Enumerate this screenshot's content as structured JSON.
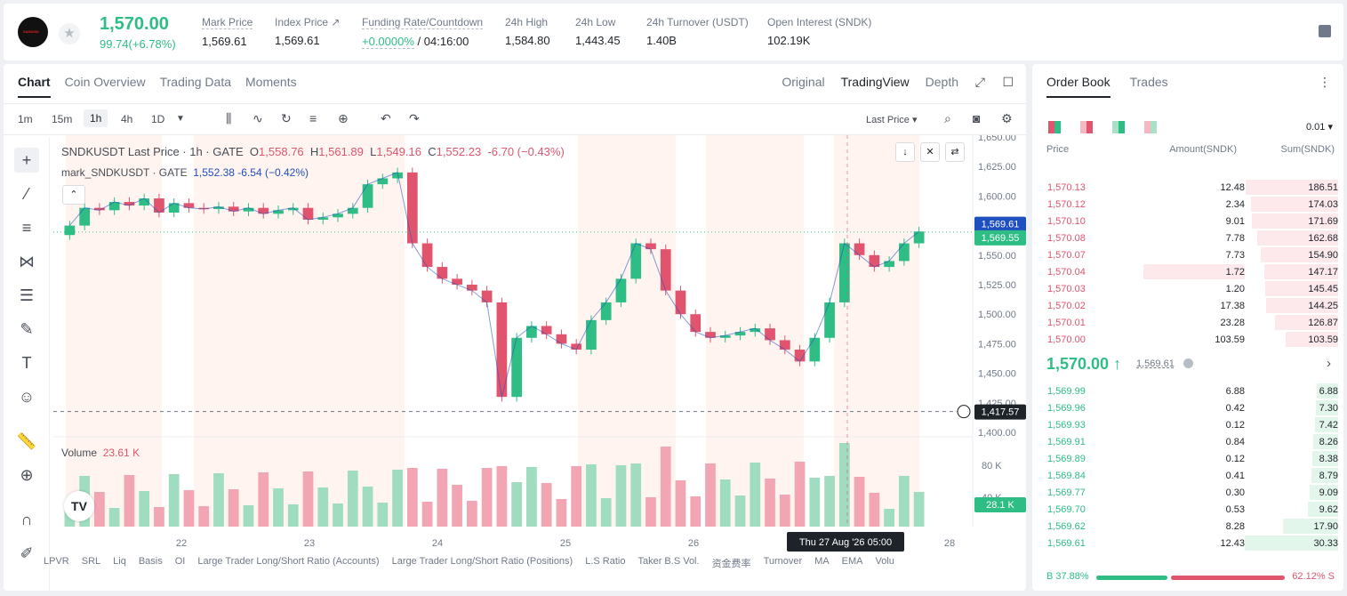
{
  "ticker": {
    "last_price": "1,570.00",
    "change": "99.74(+6.78%)",
    "stats": [
      {
        "label": "Mark Price",
        "value": "1,569.61"
      },
      {
        "label": "Index Price ↗",
        "value": "1,569.61"
      },
      {
        "label": "Funding Rate/Countdown",
        "value_rate": "+0.0000%",
        "value_countdown": "/ 04:16:00"
      },
      {
        "label": "24h High",
        "value": "1,584.80"
      },
      {
        "label": "24h Low",
        "value": "1,443.45"
      },
      {
        "label": "24h Turnover (USDT)",
        "value": "1.40B"
      },
      {
        "label": "Open Interest (SNDK)",
        "value": "102.19K"
      }
    ]
  },
  "chart_tabs": [
    "Chart",
    "Coin Overview",
    "Trading Data",
    "Moments"
  ],
  "view_tabs": [
    "Original",
    "TradingView",
    "Depth"
  ],
  "timeframes": [
    "1m",
    "15m",
    "1h",
    "4h",
    "1D"
  ],
  "price_type": "Last Price ▾",
  "legend": {
    "symbol": "SNDKUSDT Last Price · 1h · GATE",
    "o": "O",
    "o_val": "1,558.76",
    "h": "H",
    "h_val": "1,561.89",
    "l": "L",
    "l_val": "1,549.16",
    "c": "C",
    "c_val": "1,552.23",
    "chg": "-6.70 (−0.43%)",
    "mark": "mark_SNDKUSDT · GATE",
    "mark_vals": "1,552.38  -6.54  (−0.42%)"
  },
  "volume_legend": {
    "label": "Volume",
    "value": "23.61 K"
  },
  "price_tags": {
    "top": "1,569.61",
    "last": "1,569.55",
    "cross": "1,417.57",
    "vol": "28.1 K"
  },
  "crosshair_time": "Thu 27 Aug '26   05:00",
  "indicators": [
    "LPVR",
    "SRL",
    "Liq",
    "Basis",
    "OI",
    "Large Trader Long/Short Ratio (Accounts)",
    "Large Trader Long/Short Ratio (Positions)",
    "L.S Ratio",
    "Taker B.S Vol.",
    "资金费率",
    "Turnover",
    "MA",
    "EMA",
    "Volu"
  ],
  "chart_data": {
    "type": "candlestick",
    "symbol": "SNDKUSDT",
    "interval": "1h",
    "y_ticks": [
      "1,650.00",
      "1,625.00",
      "1,600.00",
      "1,575.00",
      "1,550.00",
      "1,525.00",
      "1,500.00",
      "1,475.00",
      "1,450.00",
      "1,425.00",
      "1,400.00"
    ],
    "ylim": [
      1400,
      1650
    ],
    "x_ticks": [
      "22",
      "23",
      "24",
      "25",
      "26",
      "28"
    ],
    "vol_ticks": [
      "80 K",
      "40 K"
    ],
    "series": [
      {
        "name": "Close",
        "values": [
          1575,
          1590,
          1588,
          1595,
          1592,
          1598,
          1586,
          1594,
          1590,
          1589,
          1591,
          1587,
          1590,
          1585,
          1588,
          1590,
          1580,
          1582,
          1585,
          1590,
          1610,
          1615,
          1620,
          1560,
          1540,
          1530,
          1525,
          1520,
          1510,
          1430,
          1480,
          1490,
          1483,
          1475,
          1470,
          1495,
          1510,
          1530,
          1560,
          1555,
          1520,
          1500,
          1485,
          1480,
          1482,
          1485,
          1488,
          1478,
          1470,
          1460,
          1480,
          1510,
          1560,
          1550,
          1540,
          1545,
          1560,
          1570
        ]
      }
    ]
  },
  "order_book": {
    "tabs": [
      "Order Book",
      "Trades"
    ],
    "precision": "0.01",
    "headers": [
      "Price",
      "Amount(SNDK)",
      "Sum(SNDK)"
    ],
    "asks": [
      {
        "price": "1,570.13",
        "amount": "12.48",
        "sum": "186.51",
        "depth": 0.99,
        "amt_depth": 0
      },
      {
        "price": "1,570.12",
        "amount": "2.34",
        "sum": "174.03",
        "depth": 0.93,
        "amt_depth": 0
      },
      {
        "price": "1,570.10",
        "amount": "9.01",
        "sum": "171.69",
        "depth": 0.92,
        "amt_depth": 0
      },
      {
        "price": "1,570.08",
        "amount": "7.78",
        "sum": "162.68",
        "depth": 0.87,
        "amt_depth": 0
      },
      {
        "price": "1,570.07",
        "amount": "7.73",
        "sum": "154.90",
        "depth": 0.83,
        "amt_depth": 0
      },
      {
        "price": "1,570.04",
        "amount": "1.72",
        "sum": "147.17",
        "depth": 0.79,
        "amt_depth": 0.38
      },
      {
        "price": "1,570.03",
        "amount": "1.20",
        "sum": "145.45",
        "depth": 0.78,
        "amt_depth": 0
      },
      {
        "price": "1,570.02",
        "amount": "17.38",
        "sum": "144.25",
        "depth": 0.77,
        "amt_depth": 0
      },
      {
        "price": "1,570.01",
        "amount": "23.28",
        "sum": "126.87",
        "depth": 0.68,
        "amt_depth": 0
      },
      {
        "price": "1,570.00",
        "amount": "103.59",
        "sum": "103.59",
        "depth": 0.56,
        "amt_depth": 0
      }
    ],
    "mid_price": "1,570.00 ↑",
    "mid_mark": "1,569.61",
    "bids": [
      {
        "price": "1,569.99",
        "amount": "6.88",
        "sum": "6.88",
        "depth": 0.23
      },
      {
        "price": "1,569.96",
        "amount": "0.42",
        "sum": "7.30",
        "depth": 0.24
      },
      {
        "price": "1,569.93",
        "amount": "0.12",
        "sum": "7.42",
        "depth": 0.25
      },
      {
        "price": "1,569.91",
        "amount": "0.84",
        "sum": "8.26",
        "depth": 0.27
      },
      {
        "price": "1,569.89",
        "amount": "0.12",
        "sum": "8.38",
        "depth": 0.28
      },
      {
        "price": "1,569.84",
        "amount": "0.41",
        "sum": "8.79",
        "depth": 0.29
      },
      {
        "price": "1,569.77",
        "amount": "0.30",
        "sum": "9.09",
        "depth": 0.3
      },
      {
        "price": "1,569.70",
        "amount": "0.53",
        "sum": "9.62",
        "depth": 0.32
      },
      {
        "price": "1,569.62",
        "amount": "8.28",
        "sum": "17.90",
        "depth": 0.59
      },
      {
        "price": "1,569.61",
        "amount": "12.43",
        "sum": "30.33",
        "depth": 1.0
      }
    ],
    "buy_ratio": "B 37.88%",
    "sell_ratio": "62.12% S",
    "buy_frac": 0.3788
  },
  "colors": {
    "up": "#2ebd85",
    "down": "#e0556d",
    "mark": "#1f4fbf"
  }
}
